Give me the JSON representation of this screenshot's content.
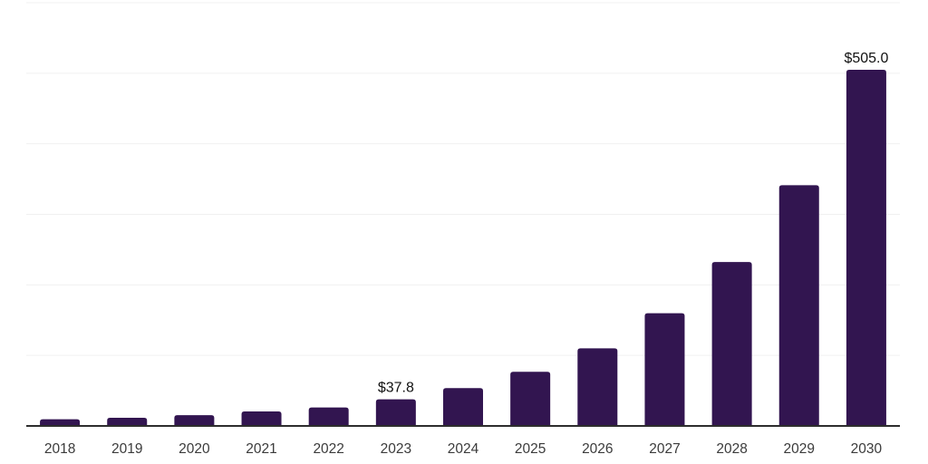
{
  "chart_data": {
    "type": "bar",
    "title": "",
    "xlabel": "",
    "ylabel": "",
    "categories": [
      "2018",
      "2019",
      "2020",
      "2021",
      "2022",
      "2023",
      "2024",
      "2025",
      "2026",
      "2027",
      "2028",
      "2029",
      "2030"
    ],
    "values": [
      9.5,
      11.5,
      15.3,
      20.5,
      26.2,
      37.8,
      53.7,
      76.7,
      110.0,
      159.8,
      232.4,
      341.2,
      505.0
    ],
    "bar_labels": {
      "2023": "$37.8",
      "2030": "$505.0"
    },
    "ylim": [
      0,
      600
    ],
    "gridline_step": 100,
    "grid": true,
    "y_tick_labels_visible": false,
    "legend": "none",
    "colors": {
      "bar_fill": "#321550",
      "gridline": "#f0f0f0",
      "axis_line": "#2d2d2d",
      "x_tick_label": "#3b3b3b",
      "value_label": "#111111",
      "background": "#ffffff"
    }
  }
}
